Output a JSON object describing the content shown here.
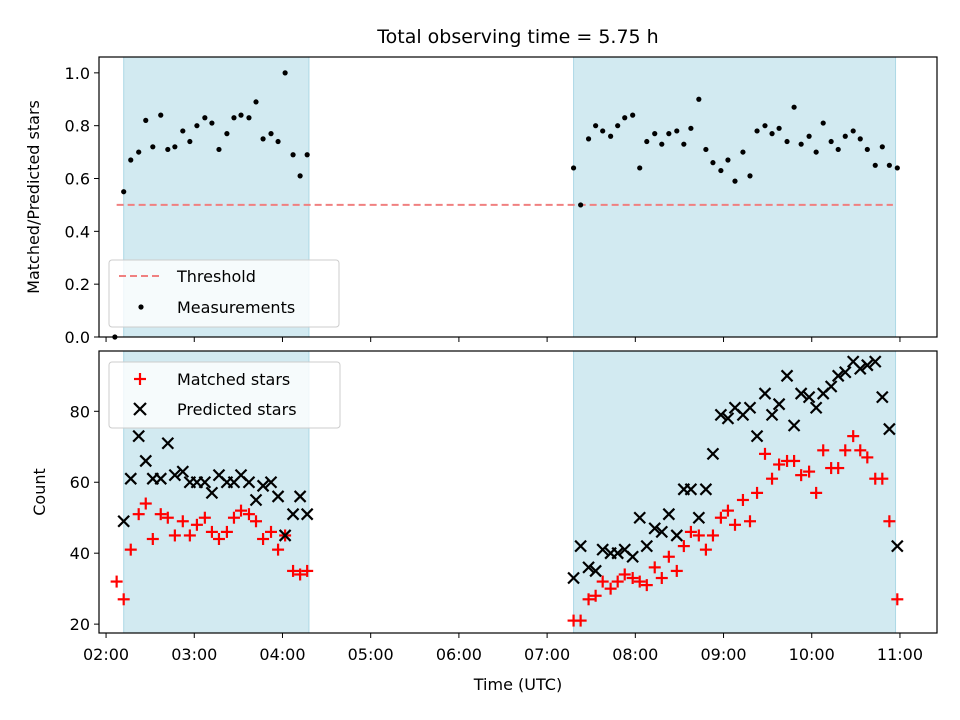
{
  "title": "Total observing time = 5.75 h",
  "colors": {
    "shade": "#add8e6",
    "threshold": "#f08080",
    "measurement": "#000000",
    "matched": "#ff0000",
    "predicted": "#000000"
  },
  "chart_data": [
    {
      "type": "scatter",
      "panel": "top",
      "ylabel": "Matched/Predicted stars",
      "xlim": [
        1.92,
        11.42
      ],
      "ylim": [
        0.0,
        1.06
      ],
      "yticks": [
        "0.0",
        "0.2",
        "0.4",
        "0.6",
        "0.8",
        "1.0"
      ],
      "ytick_values": [
        0.0,
        0.2,
        0.4,
        0.6,
        0.8,
        1.0
      ],
      "threshold": {
        "value": 0.5,
        "xrange": [
          2.12,
          10.92
        ]
      },
      "shaded_regions": [
        [
          2.2,
          4.3
        ],
        [
          7.3,
          10.95
        ]
      ],
      "legend": {
        "position": "lower-left",
        "threshold_label": "Threshold",
        "measurement_label": "Measurements"
      },
      "measurements": [
        [
          2.1,
          0.0
        ],
        [
          2.2,
          0.55
        ],
        [
          2.28,
          0.67
        ],
        [
          2.37,
          0.7
        ],
        [
          2.45,
          0.82
        ],
        [
          2.53,
          0.72
        ],
        [
          2.62,
          0.84
        ],
        [
          2.7,
          0.71
        ],
        [
          2.78,
          0.72
        ],
        [
          2.87,
          0.78
        ],
        [
          2.95,
          0.74
        ],
        [
          3.03,
          0.8
        ],
        [
          3.12,
          0.83
        ],
        [
          3.2,
          0.81
        ],
        [
          3.28,
          0.71
        ],
        [
          3.37,
          0.77
        ],
        [
          3.45,
          0.83
        ],
        [
          3.53,
          0.84
        ],
        [
          3.62,
          0.83
        ],
        [
          3.7,
          0.89
        ],
        [
          3.78,
          0.75
        ],
        [
          3.87,
          0.77
        ],
        [
          3.95,
          0.74
        ],
        [
          4.03,
          1.0
        ],
        [
          4.12,
          0.69
        ],
        [
          4.2,
          0.61
        ],
        [
          4.28,
          0.69
        ],
        [
          7.3,
          0.64
        ],
        [
          7.38,
          0.5
        ],
        [
          7.47,
          0.75
        ],
        [
          7.55,
          0.8
        ],
        [
          7.63,
          0.78
        ],
        [
          7.72,
          0.76
        ],
        [
          7.8,
          0.8
        ],
        [
          7.88,
          0.83
        ],
        [
          7.97,
          0.84
        ],
        [
          8.05,
          0.64
        ],
        [
          8.13,
          0.74
        ],
        [
          8.22,
          0.77
        ],
        [
          8.3,
          0.73
        ],
        [
          8.38,
          0.77
        ],
        [
          8.47,
          0.78
        ],
        [
          8.55,
          0.73
        ],
        [
          8.63,
          0.79
        ],
        [
          8.72,
          0.9
        ],
        [
          8.8,
          0.71
        ],
        [
          8.88,
          0.66
        ],
        [
          8.97,
          0.63
        ],
        [
          9.05,
          0.67
        ],
        [
          9.13,
          0.59
        ],
        [
          9.22,
          0.7
        ],
        [
          9.3,
          0.61
        ],
        [
          9.38,
          0.78
        ],
        [
          9.47,
          0.8
        ],
        [
          9.55,
          0.77
        ],
        [
          9.63,
          0.79
        ],
        [
          9.72,
          0.74
        ],
        [
          9.8,
          0.87
        ],
        [
          9.88,
          0.73
        ],
        [
          9.97,
          0.76
        ],
        [
          10.05,
          0.7
        ],
        [
          10.13,
          0.81
        ],
        [
          10.22,
          0.74
        ],
        [
          10.3,
          0.71
        ],
        [
          10.38,
          0.76
        ],
        [
          10.47,
          0.78
        ],
        [
          10.55,
          0.75
        ],
        [
          10.63,
          0.71
        ],
        [
          10.72,
          0.65
        ],
        [
          10.8,
          0.72
        ],
        [
          10.88,
          0.65
        ],
        [
          10.97,
          0.64
        ]
      ]
    },
    {
      "type": "scatter",
      "panel": "bottom",
      "xlabel": "Time (UTC)",
      "ylabel": "Count",
      "xlim": [
        1.92,
        11.42
      ],
      "ylim": [
        17.5,
        97.0
      ],
      "xticks": [
        "02:00",
        "03:00",
        "04:00",
        "05:00",
        "06:00",
        "07:00",
        "08:00",
        "09:00",
        "10:00",
        "11:00"
      ],
      "xtick_values": [
        2,
        3,
        4,
        5,
        6,
        7,
        8,
        9,
        10,
        11
      ],
      "yticks": [
        "20",
        "40",
        "60",
        "80"
      ],
      "ytick_values": [
        20,
        40,
        60,
        80
      ],
      "shaded_regions": [
        [
          2.2,
          4.3
        ],
        [
          7.3,
          10.95
        ]
      ],
      "legend": {
        "position": "upper-left",
        "matched_label": "Matched stars",
        "predicted_label": "Predicted stars"
      },
      "series": [
        {
          "name": "Matched stars",
          "marker": "+",
          "points": [
            [
              2.12,
              32
            ],
            [
              2.2,
              27
            ],
            [
              2.28,
              41
            ],
            [
              2.37,
              51
            ],
            [
              2.45,
              54
            ],
            [
              2.53,
              44
            ],
            [
              2.62,
              51
            ],
            [
              2.7,
              50
            ],
            [
              2.78,
              45
            ],
            [
              2.87,
              49
            ],
            [
              2.95,
              45
            ],
            [
              3.03,
              48
            ],
            [
              3.12,
              50
            ],
            [
              3.2,
              46
            ],
            [
              3.28,
              44
            ],
            [
              3.37,
              46
            ],
            [
              3.45,
              50
            ],
            [
              3.53,
              52
            ],
            [
              3.62,
              51
            ],
            [
              3.7,
              49
            ],
            [
              3.78,
              44
            ],
            [
              3.87,
              46
            ],
            [
              3.95,
              41
            ],
            [
              4.03,
              45
            ],
            [
              4.12,
              35
            ],
            [
              4.2,
              34
            ],
            [
              4.28,
              35
            ],
            [
              7.3,
              21
            ],
            [
              7.38,
              21
            ],
            [
              7.47,
              27
            ],
            [
              7.55,
              28
            ],
            [
              7.63,
              32
            ],
            [
              7.72,
              30
            ],
            [
              7.8,
              32
            ],
            [
              7.88,
              34
            ],
            [
              7.97,
              33
            ],
            [
              8.05,
              32
            ],
            [
              8.13,
              31
            ],
            [
              8.22,
              36
            ],
            [
              8.3,
              33
            ],
            [
              8.38,
              39
            ],
            [
              8.47,
              35
            ],
            [
              8.55,
              42
            ],
            [
              8.63,
              46
            ],
            [
              8.72,
              45
            ],
            [
              8.8,
              41
            ],
            [
              8.88,
              45
            ],
            [
              8.97,
              50
            ],
            [
              9.05,
              52
            ],
            [
              9.13,
              48
            ],
            [
              9.22,
              55
            ],
            [
              9.3,
              49
            ],
            [
              9.38,
              57
            ],
            [
              9.47,
              68
            ],
            [
              9.55,
              61
            ],
            [
              9.63,
              65
            ],
            [
              9.72,
              66
            ],
            [
              9.8,
              66
            ],
            [
              9.88,
              62
            ],
            [
              9.97,
              63
            ],
            [
              10.05,
              57
            ],
            [
              10.13,
              69
            ],
            [
              10.22,
              64
            ],
            [
              10.3,
              64
            ],
            [
              10.38,
              69
            ],
            [
              10.47,
              73
            ],
            [
              10.55,
              69
            ],
            [
              10.63,
              67
            ],
            [
              10.72,
              61
            ],
            [
              10.8,
              61
            ],
            [
              10.88,
              49
            ],
            [
              10.97,
              27
            ]
          ]
        },
        {
          "name": "Predicted stars",
          "marker": "x",
          "points": [
            [
              2.2,
              49
            ],
            [
              2.28,
              61
            ],
            [
              2.37,
              73
            ],
            [
              2.45,
              66
            ],
            [
              2.53,
              61
            ],
            [
              2.62,
              61
            ],
            [
              2.7,
              71
            ],
            [
              2.78,
              62
            ],
            [
              2.87,
              63
            ],
            [
              2.95,
              60
            ],
            [
              3.03,
              60
            ],
            [
              3.12,
              60
            ],
            [
              3.2,
              57
            ],
            [
              3.28,
              62
            ],
            [
              3.37,
              60
            ],
            [
              3.45,
              60
            ],
            [
              3.53,
              62
            ],
            [
              3.62,
              60
            ],
            [
              3.7,
              55
            ],
            [
              3.78,
              59
            ],
            [
              3.87,
              60
            ],
            [
              3.95,
              56
            ],
            [
              4.03,
              45
            ],
            [
              4.12,
              51
            ],
            [
              4.2,
              56
            ],
            [
              4.28,
              51
            ],
            [
              7.3,
              33
            ],
            [
              7.38,
              42
            ],
            [
              7.47,
              36
            ],
            [
              7.55,
              35
            ],
            [
              7.63,
              41
            ],
            [
              7.72,
              40
            ],
            [
              7.8,
              40
            ],
            [
              7.88,
              41
            ],
            [
              7.97,
              39
            ],
            [
              8.05,
              50
            ],
            [
              8.13,
              42
            ],
            [
              8.22,
              47
            ],
            [
              8.3,
              46
            ],
            [
              8.38,
              51
            ],
            [
              8.47,
              45
            ],
            [
              8.55,
              58
            ],
            [
              8.63,
              58
            ],
            [
              8.72,
              50
            ],
            [
              8.8,
              58
            ],
            [
              8.88,
              68
            ],
            [
              8.97,
              79
            ],
            [
              9.05,
              78
            ],
            [
              9.13,
              81
            ],
            [
              9.22,
              79
            ],
            [
              9.3,
              81
            ],
            [
              9.38,
              73
            ],
            [
              9.47,
              85
            ],
            [
              9.55,
              79
            ],
            [
              9.63,
              82
            ],
            [
              9.72,
              90
            ],
            [
              9.8,
              76
            ],
            [
              9.88,
              85
            ],
            [
              9.97,
              84
            ],
            [
              10.05,
              81
            ],
            [
              10.13,
              85
            ],
            [
              10.22,
              87
            ],
            [
              10.3,
              90
            ],
            [
              10.38,
              91
            ],
            [
              10.47,
              94
            ],
            [
              10.55,
              92
            ],
            [
              10.63,
              93
            ],
            [
              10.72,
              94
            ],
            [
              10.8,
              84
            ],
            [
              10.88,
              75
            ],
            [
              10.97,
              42
            ]
          ]
        }
      ]
    }
  ]
}
